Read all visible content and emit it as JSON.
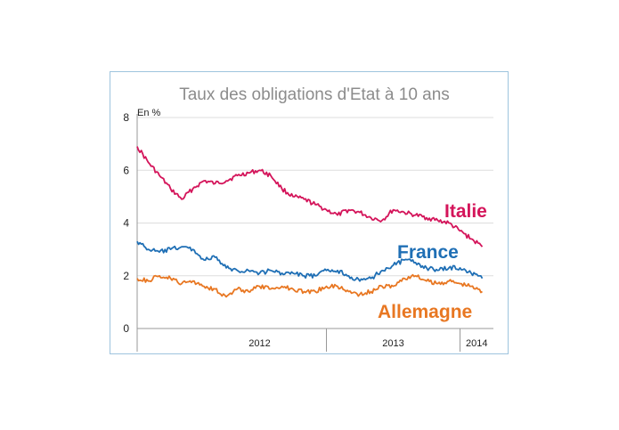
{
  "chart_data": {
    "type": "line",
    "title": "Taux des obligations d'Etat à 10 ans",
    "unit_label": "En %",
    "ylim": [
      0,
      8
    ],
    "yticks": [
      "0",
      "2",
      "4",
      "6",
      "8"
    ],
    "grid": true,
    "x_range": [
      "2011-08",
      "2014-03-31"
    ],
    "x_year_labels": [
      {
        "label": "2012",
        "start": "2012-01",
        "end": "2012-12"
      },
      {
        "label": "2013",
        "start": "2013-01",
        "end": "2013-12"
      },
      {
        "label": "2014",
        "start": "2014-01",
        "end": "2014-03"
      }
    ],
    "series": [
      {
        "name": "Italie",
        "color": "#d4145a",
        "x": [
          "2011-08",
          "2011-09",
          "2011-10",
          "2011-11",
          "2011-12",
          "2012-01",
          "2012-02",
          "2012-03",
          "2012-04",
          "2012-05",
          "2012-06",
          "2012-07",
          "2012-08",
          "2012-09",
          "2012-10",
          "2012-11",
          "2012-12",
          "2013-01",
          "2013-02",
          "2013-03",
          "2013-04",
          "2013-05",
          "2013-06",
          "2013-07",
          "2013-08",
          "2013-09",
          "2013-10",
          "2013-11",
          "2013-12",
          "2014-01",
          "2014-02",
          "2014-03"
        ],
        "values": [
          6.9,
          6.3,
          5.8,
          5.3,
          4.9,
          5.3,
          5.6,
          5.5,
          5.6,
          5.8,
          5.9,
          6.0,
          5.8,
          5.3,
          5.0,
          4.9,
          4.7,
          4.5,
          4.3,
          4.5,
          4.4,
          4.2,
          4.1,
          4.5,
          4.4,
          4.3,
          4.2,
          4.1,
          4.0,
          3.7,
          3.4,
          3.1
        ]
      },
      {
        "name": "France",
        "color": "#1f6fb5",
        "x": [
          "2011-08",
          "2011-09",
          "2011-10",
          "2011-11",
          "2011-12",
          "2012-01",
          "2012-02",
          "2012-03",
          "2012-04",
          "2012-05",
          "2012-06",
          "2012-07",
          "2012-08",
          "2012-09",
          "2012-10",
          "2012-11",
          "2012-12",
          "2013-01",
          "2013-02",
          "2013-03",
          "2013-04",
          "2013-05",
          "2013-06",
          "2013-07",
          "2013-08",
          "2013-09",
          "2013-10",
          "2013-11",
          "2013-12",
          "2014-01",
          "2014-02",
          "2014-03"
        ],
        "values": [
          3.3,
          3.0,
          2.9,
          3.0,
          3.1,
          3.0,
          2.6,
          2.7,
          2.3,
          2.2,
          2.2,
          2.1,
          2.2,
          2.1,
          2.1,
          2.0,
          2.0,
          2.2,
          2.2,
          2.0,
          1.8,
          1.9,
          2.2,
          2.4,
          2.6,
          2.5,
          2.3,
          2.2,
          2.3,
          2.3,
          2.1,
          1.9
        ]
      },
      {
        "name": "Allemagne",
        "color": "#e87722",
        "x": [
          "2011-08",
          "2011-09",
          "2011-10",
          "2011-11",
          "2011-12",
          "2012-01",
          "2012-02",
          "2012-03",
          "2012-04",
          "2012-05",
          "2012-06",
          "2012-07",
          "2012-08",
          "2012-09",
          "2012-10",
          "2012-11",
          "2012-12",
          "2013-01",
          "2013-02",
          "2013-03",
          "2013-04",
          "2013-05",
          "2013-06",
          "2013-07",
          "2013-08",
          "2013-09",
          "2013-10",
          "2013-11",
          "2013-12",
          "2014-01",
          "2014-02",
          "2014-03"
        ],
        "values": [
          1.9,
          1.8,
          2.0,
          1.9,
          1.7,
          1.8,
          1.6,
          1.5,
          1.2,
          1.5,
          1.4,
          1.6,
          1.5,
          1.6,
          1.5,
          1.4,
          1.4,
          1.6,
          1.6,
          1.4,
          1.3,
          1.4,
          1.6,
          1.6,
          1.9,
          2.0,
          1.8,
          1.7,
          1.8,
          1.7,
          1.6,
          1.4
        ]
      }
    ]
  }
}
